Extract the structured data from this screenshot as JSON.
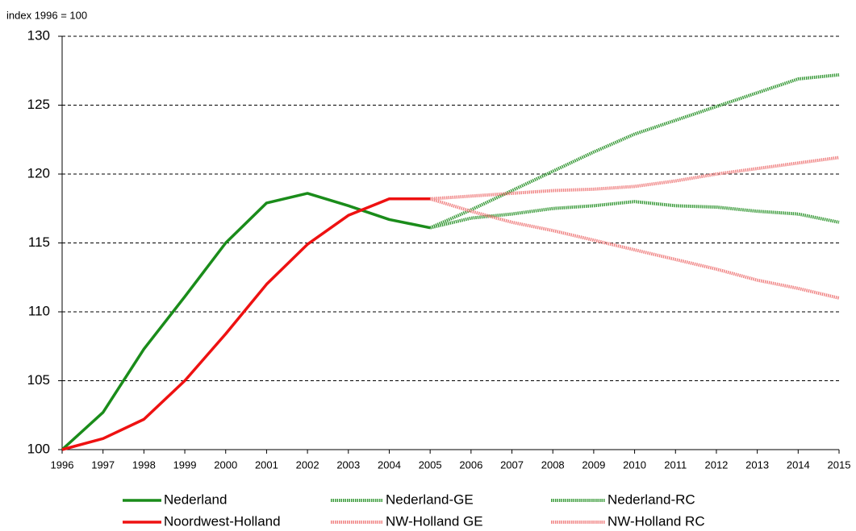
{
  "chart_data": {
    "type": "line",
    "y_label": "index 1996 = 100",
    "x": [
      1996,
      1997,
      1998,
      1999,
      2000,
      2001,
      2002,
      2003,
      2004,
      2005,
      2006,
      2007,
      2008,
      2009,
      2010,
      2011,
      2012,
      2013,
      2014,
      2015
    ],
    "xlim": [
      1996,
      2015
    ],
    "xticks": [
      1996,
      1997,
      1998,
      1999,
      2000,
      2001,
      2002,
      2003,
      2004,
      2005,
      2006,
      2007,
      2008,
      2009,
      2010,
      2011,
      2012,
      2013,
      2014,
      2015
    ],
    "ylim": [
      100,
      130
    ],
    "yticks": [
      100,
      105,
      110,
      115,
      120,
      125,
      130
    ],
    "grid": true,
    "legend": "bottom",
    "series": [
      {
        "name": "Nederland",
        "color": "#1a8c1a",
        "style": "solid",
        "values": [
          100,
          102.7,
          107.3,
          111.1,
          115.0,
          117.9,
          118.6,
          117.7,
          116.7,
          116.1,
          null,
          null,
          null,
          null,
          null,
          null,
          null,
          null,
          null,
          null
        ]
      },
      {
        "name": "Nederland-GE",
        "color": "#3d9c3d",
        "style": "textured",
        "values": [
          null,
          null,
          null,
          null,
          null,
          null,
          null,
          null,
          null,
          116.1,
          117.4,
          118.8,
          120.2,
          121.6,
          122.9,
          123.9,
          124.9,
          125.9,
          126.9,
          127.2
        ]
      },
      {
        "name": "Nederland-RC",
        "color": "#3d9c3d",
        "style": "textured",
        "values": [
          null,
          null,
          null,
          null,
          null,
          null,
          null,
          null,
          null,
          116.1,
          116.8,
          117.1,
          117.5,
          117.7,
          118.0,
          117.7,
          117.6,
          117.3,
          117.1,
          116.5
        ]
      },
      {
        "name": "Noordwest-Holland",
        "color": "#ee1111",
        "style": "solid",
        "values": [
          100,
          100.8,
          102.2,
          105.0,
          108.4,
          112.0,
          114.9,
          117.0,
          118.2,
          118.2,
          null,
          null,
          null,
          null,
          null,
          null,
          null,
          null,
          null,
          null
        ]
      },
      {
        "name": "NW-Holland GE",
        "color": "#f08585",
        "style": "textured",
        "values": [
          null,
          null,
          null,
          null,
          null,
          null,
          null,
          null,
          null,
          118.2,
          118.4,
          118.6,
          118.8,
          118.9,
          119.1,
          119.5,
          120.0,
          120.4,
          120.8,
          121.2
        ]
      },
      {
        "name": "NW-Holland RC",
        "color": "#f08585",
        "style": "textured",
        "values": [
          null,
          null,
          null,
          null,
          null,
          null,
          null,
          null,
          null,
          118.2,
          117.3,
          116.5,
          115.9,
          115.2,
          114.5,
          113.8,
          113.1,
          112.3,
          111.7,
          111.0
        ]
      }
    ]
  }
}
